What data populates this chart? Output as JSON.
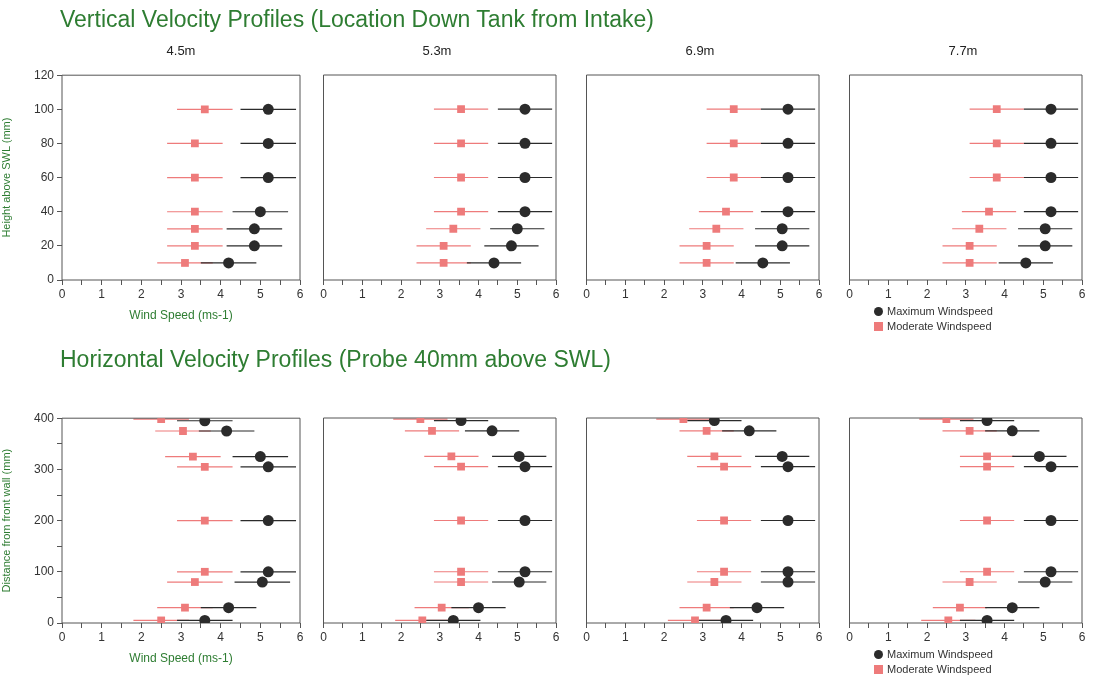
{
  "chart_data": [
    {
      "type": "scatter",
      "title": "Vertical Velocity Profiles (Location Down Tank from Intake)",
      "subtitle": "4.5m",
      "xlabel": "Wind Speed (ms-1)",
      "ylabel": "Height above SWL (mm)",
      "xlim": [
        0,
        6
      ],
      "xticks": [
        0,
        {
          "value": 0.5,
          "label": null
        },
        1,
        {
          "value": 1.5,
          "label": null
        },
        2,
        {
          "value": 2.5,
          "label": null
        },
        3,
        {
          "value": 3.5,
          "label": null
        },
        4,
        {
          "value": 4.5,
          "label": null
        },
        5,
        {
          "value": 5.5,
          "label": null
        },
        6
      ],
      "ylim": [
        0,
        120
      ],
      "yticks": [
        0,
        20,
        40,
        60,
        80,
        100,
        120
      ],
      "series": [
        {
          "color": "#2b2b2b",
          "marker": "circle",
          "x": [
            5.2,
            5.2,
            5.2,
            5.0,
            4.85,
            4.85,
            4.2
          ],
          "values": [
            100,
            80,
            60,
            40,
            30,
            20,
            10
          ],
          "xerrors": [
            0.7,
            0.7,
            0.7,
            0.7,
            0.7,
            0.7,
            0.7
          ]
        },
        {
          "color": "#ee7b7b",
          "marker": "square",
          "x": [
            3.6,
            3.35,
            3.35,
            3.35,
            3.35,
            3.35,
            3.1
          ],
          "values": [
            100,
            80,
            60,
            40,
            30,
            20,
            10
          ],
          "xerrors": [
            0.7,
            0.7,
            0.7,
            0.7,
            0.7,
            0.7,
            0.7
          ]
        }
      ]
    },
    {
      "type": "scatter",
      "subtitle": "5.3m",
      "xlim": [
        0,
        6
      ],
      "xticks": [
        0,
        {
          "value": 0.5,
          "label": null
        },
        1,
        {
          "value": 1.5,
          "label": null
        },
        2,
        {
          "value": 2.5,
          "label": null
        },
        3,
        {
          "value": 3.5,
          "label": null
        },
        4,
        {
          "value": 4.5,
          "label": null
        },
        5,
        {
          "value": 5.5,
          "label": null
        },
        6
      ],
      "ylim": [
        0,
        120
      ],
      "tick_labels": "x",
      "series": [
        {
          "color": "#2b2b2b",
          "marker": "circle",
          "x": [
            5.2,
            5.2,
            5.2,
            5.2,
            5.0,
            4.85,
            4.4
          ],
          "values": [
            100,
            80,
            60,
            40,
            30,
            20,
            10
          ],
          "xerrors": [
            0.7,
            0.7,
            0.7,
            0.7,
            0.7,
            0.7,
            0.7
          ]
        },
        {
          "color": "#ee7b7b",
          "marker": "square",
          "x": [
            3.55,
            3.55,
            3.55,
            3.55,
            3.35,
            3.1,
            3.1
          ],
          "values": [
            100,
            80,
            60,
            40,
            30,
            20,
            10
          ],
          "xerrors": [
            0.7,
            0.7,
            0.7,
            0.7,
            0.7,
            0.7,
            0.7
          ]
        }
      ]
    },
    {
      "type": "scatter",
      "subtitle": "6.9m",
      "xlim": [
        0,
        6
      ],
      "xticks": [
        0,
        {
          "value": 0.5,
          "label": null
        },
        1,
        {
          "value": 1.5,
          "label": null
        },
        2,
        {
          "value": 2.5,
          "label": null
        },
        3,
        {
          "value": 3.5,
          "label": null
        },
        4,
        {
          "value": 4.5,
          "label": null
        },
        5,
        {
          "value": 5.5,
          "label": null
        },
        6
      ],
      "ylim": [
        0,
        120
      ],
      "tick_labels": "x",
      "series": [
        {
          "color": "#2b2b2b",
          "marker": "circle",
          "x": [
            5.2,
            5.2,
            5.2,
            5.2,
            5.05,
            5.05,
            4.55
          ],
          "values": [
            100,
            80,
            60,
            40,
            30,
            20,
            10
          ],
          "xerrors": [
            0.7,
            0.7,
            0.7,
            0.7,
            0.7,
            0.7,
            0.7
          ]
        },
        {
          "color": "#ee7b7b",
          "marker": "square",
          "x": [
            3.8,
            3.8,
            3.8,
            3.6,
            3.35,
            3.1,
            3.1
          ],
          "values": [
            100,
            80,
            60,
            40,
            30,
            20,
            10
          ],
          "xerrors": [
            0.7,
            0.7,
            0.7,
            0.7,
            0.7,
            0.7,
            0.7
          ]
        }
      ]
    },
    {
      "type": "scatter",
      "subtitle": "7.7m",
      "legend": "bottom",
      "xlim": [
        0,
        6
      ],
      "xticks": [
        0,
        {
          "value": 0.5,
          "label": null
        },
        1,
        {
          "value": 1.5,
          "label": null
        },
        2,
        {
          "value": 2.5,
          "label": null
        },
        3,
        {
          "value": 3.5,
          "label": null
        },
        4,
        {
          "value": 4.5,
          "label": null
        },
        5,
        {
          "value": 5.5,
          "label": null
        },
        6
      ],
      "ylim": [
        0,
        120
      ],
      "tick_labels": "x",
      "series": [
        {
          "name": "Maximum Windspeed",
          "color": "#2b2b2b",
          "marker": "circle",
          "x": [
            5.2,
            5.2,
            5.2,
            5.2,
            5.05,
            5.05,
            4.55
          ],
          "values": [
            100,
            80,
            60,
            40,
            30,
            20,
            10
          ],
          "xerrors": [
            0.7,
            0.7,
            0.7,
            0.7,
            0.7,
            0.7,
            0.7
          ]
        },
        {
          "name": "Moderate Windspeed",
          "color": "#ee7b7b",
          "marker": "square",
          "x": [
            3.8,
            3.8,
            3.8,
            3.6,
            3.35,
            3.1,
            3.1
          ],
          "values": [
            100,
            80,
            60,
            40,
            30,
            20,
            10
          ],
          "xerrors": [
            0.7,
            0.7,
            0.7,
            0.7,
            0.7,
            0.7,
            0.7
          ]
        }
      ]
    },
    {
      "type": "scatter",
      "title": "Horizontal Velocity Profiles (Probe 40mm above SWL)",
      "xlabel": "Wind Speed (ms-1)",
      "ylabel": "Distance from front wall (mm)",
      "xlim": [
        0,
        6
      ],
      "xticks": [
        0,
        {
          "value": 0.5,
          "label": null
        },
        1,
        {
          "value": 1.5,
          "label": null
        },
        2,
        {
          "value": 2.5,
          "label": null
        },
        3,
        {
          "value": 3.5,
          "label": null
        },
        4,
        {
          "value": 4.5,
          "label": null
        },
        5,
        {
          "value": 5.5,
          "label": null
        },
        6
      ],
      "ylim": [
        0,
        400
      ],
      "yticks": [
        0,
        {
          "value": 50,
          "label": null
        },
        100,
        {
          "value": 150,
          "label": null
        },
        200,
        {
          "value": 250,
          "label": null
        },
        300,
        {
          "value": 350,
          "label": null
        },
        400
      ],
      "series": [
        {
          "color": "#2b2b2b",
          "marker": "circle",
          "x": [
            3.6,
            4.15,
            5.0,
            5.2,
            5.2,
            5.2,
            5.05,
            4.2,
            3.6
          ],
          "values": [
            395,
            375,
            325,
            305,
            200,
            100,
            80,
            30,
            5
          ],
          "xerrors": [
            0.7,
            0.7,
            0.7,
            0.7,
            0.7,
            0.7,
            0.7,
            0.7,
            0.7
          ]
        },
        {
          "color": "#ee7b7b",
          "marker": "square",
          "x": [
            2.5,
            3.05,
            3.3,
            3.6,
            3.6,
            3.6,
            3.35,
            3.1,
            2.5
          ],
          "values": [
            398,
            375,
            325,
            305,
            200,
            100,
            80,
            30,
            5
          ],
          "xerrors": [
            0.7,
            0.7,
            0.7,
            0.7,
            0.7,
            0.7,
            0.7,
            0.7,
            0.7
          ]
        }
      ]
    },
    {
      "type": "scatter",
      "xlim": [
        0,
        6
      ],
      "xticks": [
        0,
        {
          "value": 0.5,
          "label": null
        },
        1,
        {
          "value": 1.5,
          "label": null
        },
        2,
        {
          "value": 2.5,
          "label": null
        },
        3,
        {
          "value": 3.5,
          "label": null
        },
        4,
        {
          "value": 4.5,
          "label": null
        },
        5,
        {
          "value": 5.5,
          "label": null
        },
        6
      ],
      "ylim": [
        0,
        400
      ],
      "tick_labels": "x",
      "series": [
        {
          "color": "#2b2b2b",
          "marker": "circle",
          "x": [
            3.55,
            4.35,
            5.05,
            5.2,
            5.2,
            5.2,
            5.05,
            4.0,
            3.35
          ],
          "values": [
            395,
            375,
            325,
            305,
            200,
            100,
            80,
            30,
            5
          ],
          "xerrors": [
            0.7,
            0.7,
            0.7,
            0.7,
            0.7,
            0.7,
            0.7,
            0.7,
            0.7
          ]
        },
        {
          "color": "#ee7b7b",
          "marker": "square",
          "x": [
            2.5,
            2.8,
            3.3,
            3.55,
            3.55,
            3.55,
            3.55,
            3.05,
            2.55
          ],
          "values": [
            398,
            375,
            325,
            305,
            200,
            100,
            80,
            30,
            5
          ],
          "xerrors": [
            0.7,
            0.7,
            0.7,
            0.7,
            0.7,
            0.7,
            0.7,
            0.7,
            0.7
          ]
        }
      ]
    },
    {
      "type": "scatter",
      "xlim": [
        0,
        6
      ],
      "xticks": [
        0,
        {
          "value": 0.5,
          "label": null
        },
        1,
        {
          "value": 1.5,
          "label": null
        },
        2,
        {
          "value": 2.5,
          "label": null
        },
        3,
        {
          "value": 3.5,
          "label": null
        },
        4,
        {
          "value": 4.5,
          "label": null
        },
        5,
        {
          "value": 5.5,
          "label": null
        },
        6
      ],
      "ylim": [
        0,
        400
      ],
      "tick_labels": "x",
      "series": [
        {
          "color": "#2b2b2b",
          "marker": "circle",
          "x": [
            3.3,
            4.2,
            5.05,
            5.2,
            5.2,
            5.2,
            5.2,
            4.4,
            3.6
          ],
          "values": [
            395,
            375,
            325,
            305,
            200,
            100,
            80,
            30,
            5
          ],
          "xerrors": [
            0.7,
            0.7,
            0.7,
            0.7,
            0.7,
            0.7,
            0.7,
            0.7,
            0.7
          ]
        },
        {
          "color": "#ee7b7b",
          "marker": "square",
          "x": [
            2.5,
            3.1,
            3.3,
            3.55,
            3.55,
            3.55,
            3.3,
            3.1,
            2.8
          ],
          "values": [
            398,
            375,
            325,
            305,
            200,
            100,
            80,
            30,
            5
          ],
          "xerrors": [
            0.7,
            0.7,
            0.7,
            0.7,
            0.7,
            0.7,
            0.7,
            0.7,
            0.7
          ]
        }
      ]
    },
    {
      "type": "scatter",
      "legend": "bottom",
      "xlim": [
        0,
        6
      ],
      "xticks": [
        0,
        {
          "value": 0.5,
          "label": null
        },
        1,
        {
          "value": 1.5,
          "label": null
        },
        2,
        {
          "value": 2.5,
          "label": null
        },
        3,
        {
          "value": 3.5,
          "label": null
        },
        4,
        {
          "value": 4.5,
          "label": null
        },
        5,
        {
          "value": 5.5,
          "label": null
        },
        6
      ],
      "ylim": [
        0,
        400
      ],
      "tick_labels": "x",
      "series": [
        {
          "name": "Maximum Windspeed",
          "color": "#2b2b2b",
          "marker": "circle",
          "x": [
            3.55,
            4.2,
            4.9,
            5.2,
            5.2,
            5.2,
            5.05,
            4.2,
            3.55
          ],
          "values": [
            395,
            375,
            325,
            305,
            200,
            100,
            80,
            30,
            5
          ],
          "xerrors": [
            0.7,
            0.7,
            0.7,
            0.7,
            0.7,
            0.7,
            0.7,
            0.7,
            0.7
          ]
        },
        {
          "name": "Moderate Windspeed",
          "color": "#ee7b7b",
          "marker": "square",
          "x": [
            2.5,
            3.1,
            3.55,
            3.55,
            3.55,
            3.55,
            3.1,
            2.85,
            2.55
          ],
          "values": [
            398,
            375,
            325,
            305,
            200,
            100,
            80,
            30,
            5
          ],
          "xerrors": [
            0.7,
            0.7,
            0.7,
            0.7,
            0.7,
            0.7,
            0.7,
            0.7,
            0.7
          ]
        }
      ]
    }
  ]
}
